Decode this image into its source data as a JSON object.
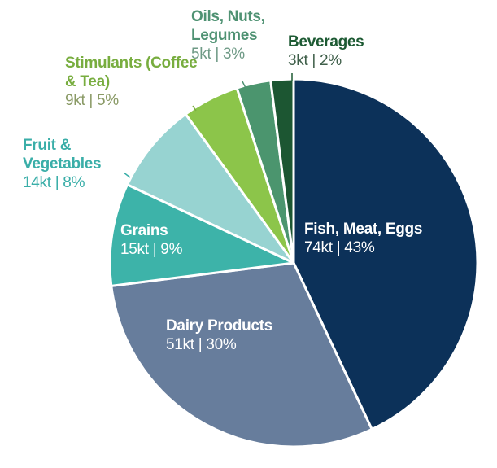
{
  "chart_data": {
    "type": "pie",
    "start": "top",
    "direction": "clockwise",
    "slices": [
      {
        "name": "Fish, Meat, Eggs",
        "value_label": "74kt | 43%",
        "value_kt": 74,
        "percent": 43,
        "color": "#0c3159",
        "label_color": "#ffffff",
        "value_color": "#ffffff"
      },
      {
        "name": "Dairy Products",
        "value_label": "51kt | 30%",
        "value_kt": 51,
        "percent": 30,
        "color": "#677d9c",
        "label_color": "#ffffff",
        "value_color": "#ffffff"
      },
      {
        "name": "Grains",
        "value_label": "15kt | 9%",
        "value_kt": 15,
        "percent": 9,
        "color": "#3db3a9",
        "label_color": "#ffffff",
        "value_color": "#ffffff"
      },
      {
        "name": "Fruit & Vegetables",
        "value_label": "14kt | 8%",
        "value_kt": 14,
        "percent": 8,
        "color": "#97d3d1",
        "label_color": "#3aaea8",
        "value_color": "#3aaea8"
      },
      {
        "name": "Stimulants (Coffee & Tea)",
        "value_label": "9kt | 5%",
        "value_kt": 9,
        "percent": 5,
        "color": "#8cc54a",
        "label_color": "#78ad3f",
        "value_color": "#8a9a66"
      },
      {
        "name": "Oils, Nuts, Legumes",
        "value_label": "5kt | 3%",
        "value_kt": 5,
        "percent": 3,
        "color": "#4b956e",
        "label_color": "#4f9273",
        "value_color": "#6f9a86"
      },
      {
        "name": "Beverages",
        "value_label": "3kt | 2%",
        "value_kt": 3,
        "percent": 2,
        "color": "#1c5632",
        "label_color": "#1d5a33",
        "value_color": "#3f5f4a"
      }
    ]
  }
}
